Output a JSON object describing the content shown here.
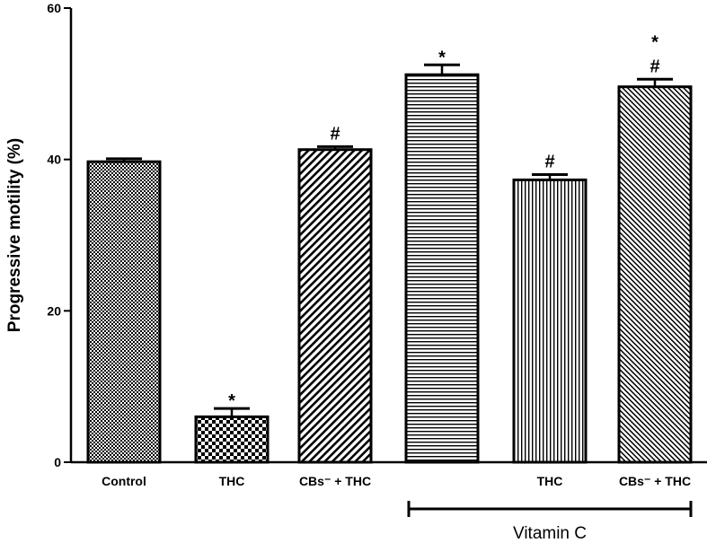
{
  "chart_data": {
    "type": "bar",
    "title": "",
    "xlabel": "",
    "ylabel": "Progressive motility (%)",
    "ylim": [
      0,
      60
    ],
    "yticks": [
      "0",
      "20",
      "40",
      "60"
    ],
    "grid": false,
    "categories": [
      "Control",
      "THC",
      "CBs⁻ + THC",
      "",
      "THC",
      "CBs⁻ + THC"
    ],
    "values": [
      39.7,
      6.0,
      41.3,
      51.2,
      37.3,
      49.6
    ],
    "errors": [
      0.4,
      1.1,
      0.4,
      1.3,
      0.7,
      1.0
    ],
    "annotations": [
      {
        "index": 1,
        "text": "*"
      },
      {
        "index": 2,
        "text": "#"
      },
      {
        "index": 3,
        "text": "*"
      },
      {
        "index": 4,
        "text": "#"
      },
      {
        "index": 5,
        "text": "#"
      },
      {
        "index": 5,
        "text": "*"
      }
    ],
    "group_bracket": {
      "label": "Vitamin C",
      "from_index": 3,
      "to_index": 5
    },
    "patterns": [
      "dots-fine",
      "checker",
      "diagonal",
      "horizontal",
      "vertical",
      "diagonal-dense"
    ]
  }
}
